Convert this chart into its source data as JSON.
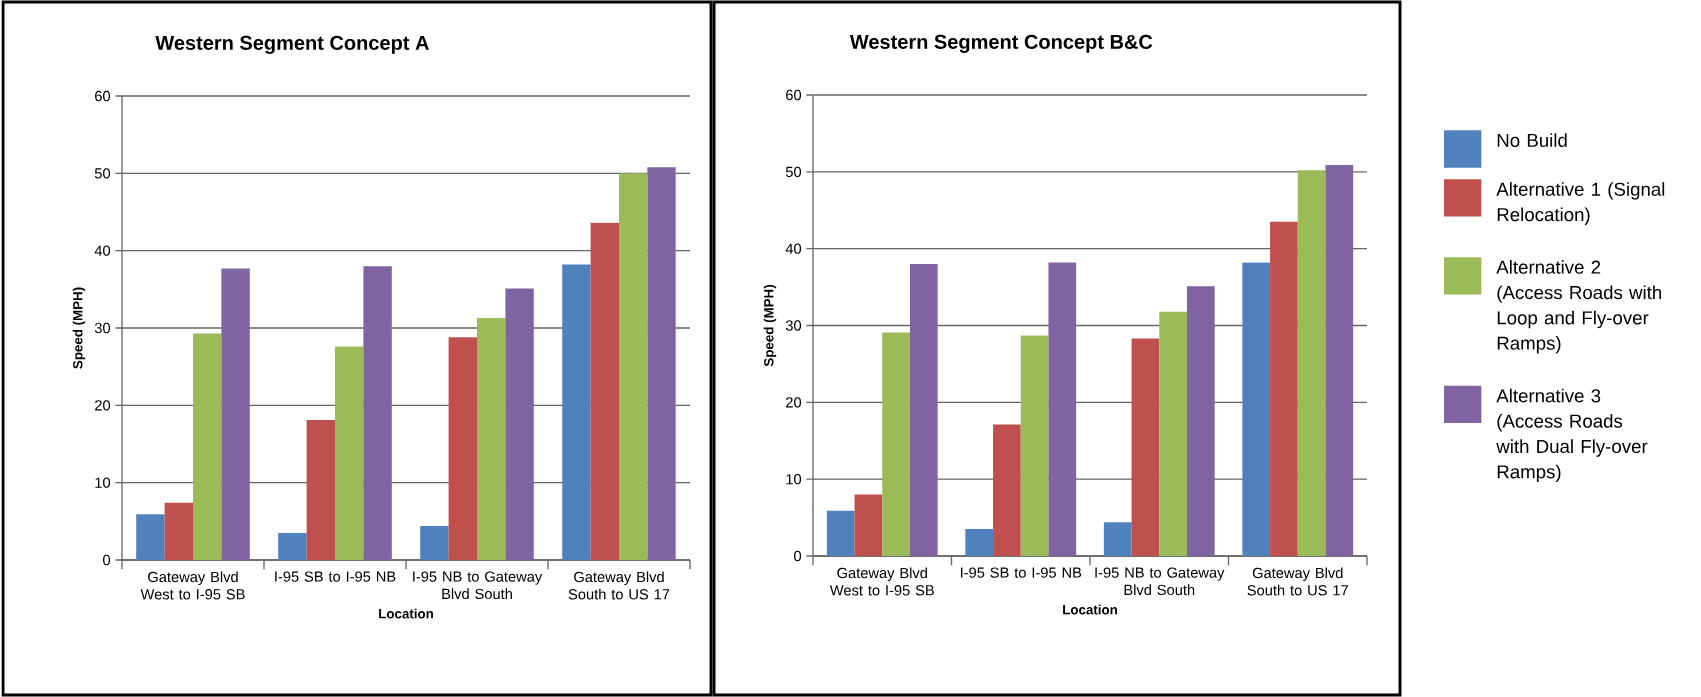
{
  "chart_data": [
    {
      "type": "bar",
      "title": "Western Segment Concept A",
      "xlabel": "Location",
      "ylabel": "Speed (MPH)",
      "categories": [
        "Gateway Blvd West to I-95 SB",
        "I-95 SB to I-95 NB",
        "I-95 NB to Gateway Blvd South",
        "Gateway Blvd South to US 17"
      ],
      "series": [
        {
          "color": "#4f81bd",
          "values": [
            5.9,
            3.5,
            4.4,
            38.2
          ]
        },
        {
          "color": "#c0504d",
          "values": [
            7.4,
            18.1,
            28.8,
            43.6
          ]
        },
        {
          "color": "#9bbb59",
          "values": [
            29.3,
            27.6,
            31.3,
            50.0
          ]
        },
        {
          "color": "#8064a2",
          "values": [
            37.7,
            38.0,
            35.1,
            50.8
          ]
        }
      ],
      "ylim": [
        0,
        60
      ],
      "yticks": [
        0,
        10,
        20,
        30,
        40,
        50,
        60
      ],
      "grid": "y"
    },
    {
      "type": "bar",
      "title": "Western Segment Concept B&C",
      "xlabel": "Location",
      "ylabel": "Speed (MPH)",
      "categories": [
        "Gateway Blvd West to I-95 SB",
        "I-95 SB to I-95 NB",
        "I-95 NB to Gateway Blvd South",
        "Gateway Blvd South to US 17"
      ],
      "series": [
        {
          "name": "No Build",
          "color": "#4f81bd",
          "values": [
            5.9,
            3.5,
            4.4,
            38.2
          ]
        },
        {
          "name": "Alternative 1 (Signal Relocation)",
          "color": "#c0504d",
          "values": [
            8.0,
            17.1,
            28.3,
            43.5
          ]
        },
        {
          "name": "Alternative 2 (Access Roads with Loop and Fly-over Ramps)",
          "color": "#9bbb59",
          "values": [
            29.1,
            28.7,
            31.8,
            50.2
          ]
        },
        {
          "name": "Alternative 3 (Access Roads with Dual Fly-over Ramps)",
          "color": "#8064a2",
          "values": [
            38.0,
            38.2,
            35.1,
            50.9
          ]
        }
      ],
      "ylim": [
        0,
        60
      ],
      "yticks": [
        0,
        10,
        20,
        30,
        40,
        50,
        60
      ],
      "grid": "y",
      "legend": "right"
    }
  ]
}
